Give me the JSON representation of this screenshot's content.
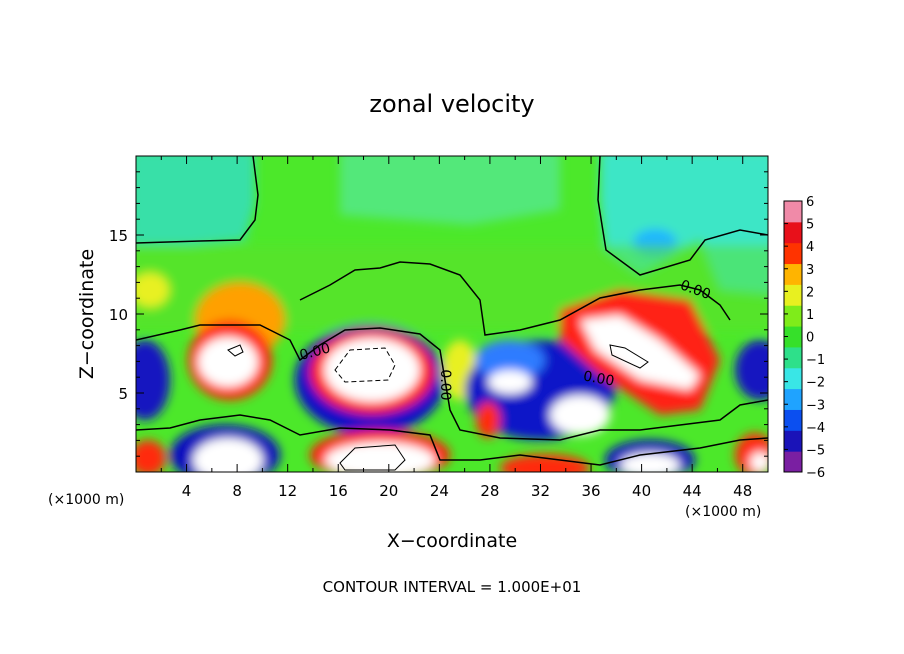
{
  "chart_data": {
    "type": "heatmap",
    "title": "zonal velocity",
    "xlabel": "X−coordinate",
    "ylabel": "Z−coordinate",
    "x_unit_left": "(×1000 m)",
    "x_unit_right": "(×1000 m)",
    "footer": "CONTOUR INTERVAL = 1.000E+01",
    "xlim": [
      0,
      50
    ],
    "ylim": [
      0,
      20
    ],
    "x_ticks": [
      "4",
      "8",
      "12",
      "16",
      "20",
      "24",
      "28",
      "32",
      "36",
      "40",
      "44",
      "48"
    ],
    "y_ticks": [
      "5",
      "10",
      "15"
    ],
    "colorbar": {
      "labels": [
        "6",
        "5",
        "4",
        "3",
        "2",
        "1",
        "0",
        "−1",
        "−2",
        "−3",
        "−4",
        "−5",
        "−6"
      ],
      "min": -6,
      "max": 6
    },
    "contour_labels": [
      "0.00",
      "0.00",
      "0.00",
      "0.00"
    ],
    "colors": {
      "above_range": "#ffffff",
      "scale": [
        "#7a1fa2",
        "#1a13b8",
        "#0b4ff0",
        "#1fa3ff",
        "#39e6e6",
        "#2ee08a",
        "#36e02a",
        "#7fec1a",
        "#e8f020",
        "#ffb400",
        "#ff3300",
        "#e8101a",
        "#f08aa8"
      ]
    }
  }
}
